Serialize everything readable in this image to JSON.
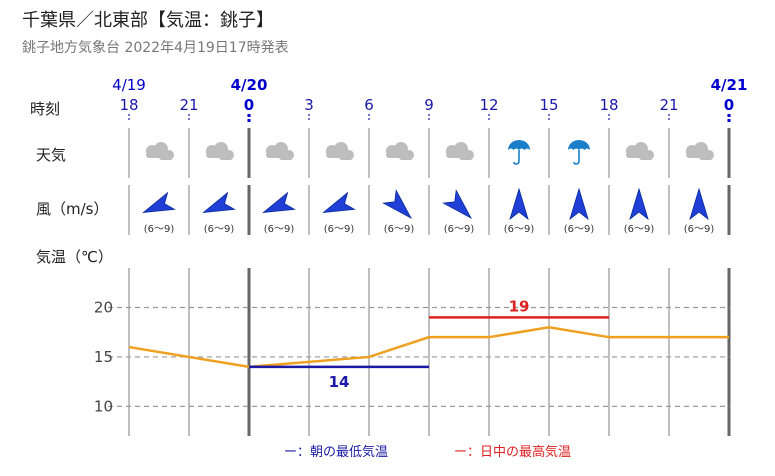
{
  "title": "千葉県／北東部【気温：銚子】",
  "subtitle": "銚子地方気象台 2022年4月19日17時発表",
  "row_labels": {
    "time": "時刻",
    "weather": "天気",
    "wind": "風（m/s）",
    "temp": "気温（℃）"
  },
  "colors": {
    "hour": "#1a1aa6",
    "midnight": "#0000cc",
    "temp_line": "#f0a020",
    "min_line": "#1a1aa6",
    "max_line": "#dd2222",
    "grid": "#999999",
    "umbrella": "#1a7fc8",
    "cloud": "#bdbdbd",
    "arrow": "#1f3fd6"
  },
  "chart_data": {
    "type": "line",
    "dates": [
      {
        "label": "4/19",
        "at_hour_index": 0
      },
      {
        "label": "4/20",
        "at_hour_index": 2
      },
      {
        "label": "4/21",
        "at_hour_index": 10
      }
    ],
    "hours": [
      "18",
      "21",
      "0",
      "3",
      "6",
      "9",
      "12",
      "15",
      "18",
      "21",
      "0"
    ],
    "weather": [
      "cloudy",
      "cloudy",
      "cloudy",
      "cloudy",
      "cloudy",
      "cloudy",
      "rain",
      "rain",
      "cloudy",
      "cloudy"
    ],
    "wind": {
      "speed_text": [
        "(6〜9)",
        "(6〜9)",
        "(6〜9)",
        "(6〜9)",
        "(6〜9)",
        "(6〜9)",
        "(6〜9)",
        "(6〜9)",
        "(6〜9)",
        "(6〜9)"
      ],
      "direction": [
        "ENE",
        "ENE",
        "ENE",
        "ENE",
        "NW",
        "NW",
        "S",
        "S",
        "S",
        "S"
      ]
    },
    "temperature": {
      "x": [
        "4/19 18",
        "4/20 0",
        "4/20 6",
        "4/20 9",
        "4/20 12",
        "4/20 15",
        "4/20 18",
        "4/21 0"
      ],
      "values": [
        16,
        14,
        15,
        17,
        17,
        18,
        17,
        17
      ]
    },
    "min_temp": {
      "value": 14,
      "label": "14",
      "from": "4/20 0",
      "to": "4/20 9"
    },
    "max_temp": {
      "value": 19,
      "label": "19",
      "from": "4/20 9",
      "to": "4/20 18"
    },
    "yticks": [
      10,
      15,
      20
    ],
    "ylim": [
      7,
      24
    ],
    "grid": true
  },
  "legend": {
    "min": "ー：朝の最低気温",
    "max": "ー：日中の最高気温"
  }
}
